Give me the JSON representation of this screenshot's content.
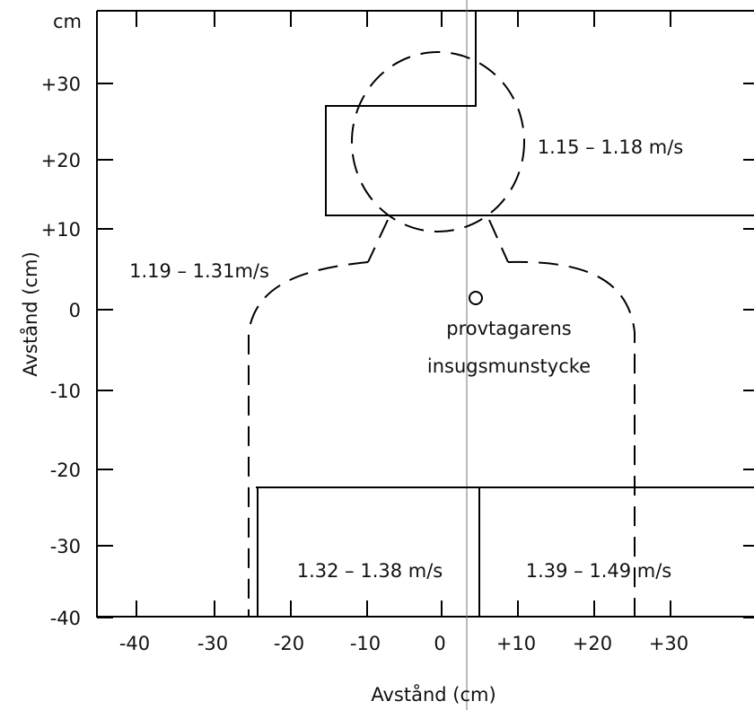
{
  "axes": {
    "unit": "cm",
    "y": {
      "title": "Avstånd (cm)",
      "ticks": [
        "+30",
        "+20",
        "+10",
        "0",
        "-10",
        "-20",
        "-30",
        "-40"
      ]
    },
    "x": {
      "title": "Avstånd (cm)",
      "ticks": [
        "-40",
        "-30",
        "-20",
        "-10",
        "0",
        "+10",
        "+20",
        "+30"
      ]
    }
  },
  "zones": [
    {
      "label": "1.15 – 1.18 m/s"
    },
    {
      "label": "1.19 – 1.31m/s"
    },
    {
      "label": "1.32 – 1.38 m/s"
    },
    {
      "label": "1.39 – 1.49 m/s"
    }
  ],
  "annotation": {
    "lines": [
      "provtagarens",
      "insugsmunstycke"
    ]
  }
}
